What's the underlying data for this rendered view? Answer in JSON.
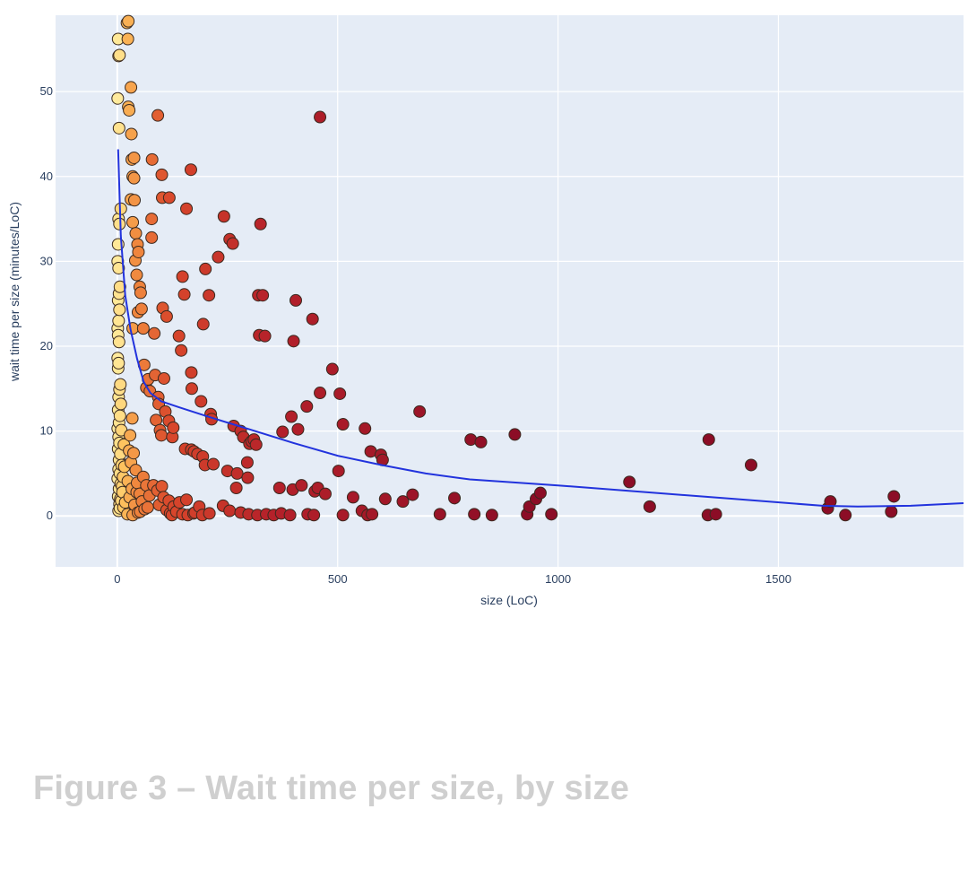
{
  "caption": "Figure 3 – Wait time per size, by size",
  "colors": {
    "plot_bg": "#e5ecf6",
    "grid": "#ffffff",
    "trend": "#2233dd",
    "marker_stroke": "#3a2a20",
    "colorscale": [
      "#ffeda0",
      "#fec45f",
      "#f0883e",
      "#d9472b",
      "#b5212a",
      "#8c0d26"
    ]
  },
  "chart_data": {
    "type": "scatter",
    "title": "",
    "xlabel": "size (LoC)",
    "ylabel": "wait time per size (minutes/LoC)",
    "xlim": [
      -140,
      1920
    ],
    "ylim": [
      -6,
      59
    ],
    "x_ticks": [
      0,
      500,
      1000,
      1500
    ],
    "x_tick_labels": [
      "0",
      "500",
      "1000",
      "1500"
    ],
    "y_ticks": [
      0,
      10,
      20,
      30,
      40,
      50
    ],
    "y_tick_labels": [
      "0",
      "10",
      "20",
      "30",
      "40",
      "50"
    ],
    "grid": true,
    "legend": "none",
    "marker_color_by": "size",
    "series": [
      {
        "points": [
          [
            2,
            56.2
          ],
          [
            3,
            54.2
          ],
          [
            5,
            54.3
          ],
          [
            1,
            49.2
          ],
          [
            4,
            45.7
          ],
          [
            8,
            36.2
          ],
          [
            3,
            35
          ],
          [
            5,
            34.4
          ],
          [
            2,
            32
          ],
          [
            1,
            30
          ],
          [
            3,
            29.2
          ],
          [
            6,
            27
          ],
          [
            4,
            26.2
          ],
          [
            2,
            25.4
          ],
          [
            5,
            24.3
          ],
          [
            3,
            23
          ],
          [
            1,
            22.1
          ],
          [
            2,
            21.3
          ],
          [
            4,
            20.5
          ],
          [
            1,
            18.6
          ],
          [
            3,
            18
          ],
          [
            2,
            17.4
          ],
          [
            7,
            15.5
          ],
          [
            5,
            14.9
          ],
          [
            3,
            14
          ],
          [
            8,
            13.2
          ],
          [
            2,
            12.5
          ],
          [
            6,
            11.8
          ],
          [
            4,
            11
          ],
          [
            1,
            10.3
          ],
          [
            9,
            10.1
          ],
          [
            3,
            9.3
          ],
          [
            5,
            8.6
          ],
          [
            2,
            7.9
          ],
          [
            7,
            7.3
          ],
          [
            4,
            6.6
          ],
          [
            10,
            6
          ],
          [
            3,
            5.5
          ],
          [
            6,
            5
          ],
          [
            1,
            4.4
          ],
          [
            8,
            3.8
          ],
          [
            4,
            3.2
          ],
          [
            12,
            2.8
          ],
          [
            2,
            2.3
          ],
          [
            9,
            1.8
          ],
          [
            5,
            1.4
          ],
          [
            14,
            1
          ],
          [
            3,
            0.6
          ],
          [
            11,
            3.5
          ],
          [
            7,
            2
          ],
          [
            16,
            5.8
          ],
          [
            13,
            4.6
          ],
          [
            18,
            1.6
          ],
          [
            6,
            0.9
          ],
          [
            15,
            8.4
          ],
          [
            22,
            58.1
          ],
          [
            25,
            58.3
          ],
          [
            24,
            56.2
          ],
          [
            31,
            50.5
          ],
          [
            25,
            48.2
          ],
          [
            27,
            47.8
          ],
          [
            32,
            45
          ],
          [
            38,
            42.2
          ],
          [
            33,
            42
          ],
          [
            35,
            40
          ],
          [
            38,
            39.8
          ],
          [
            31,
            37.3
          ],
          [
            39,
            37.2
          ],
          [
            35,
            34.6
          ],
          [
            42,
            33.3
          ],
          [
            46,
            32
          ],
          [
            41,
            30.1
          ],
          [
            48,
            31.1
          ],
          [
            44,
            28.4
          ],
          [
            51,
            27
          ],
          [
            53,
            26.3
          ],
          [
            47,
            24
          ],
          [
            55,
            24.4
          ],
          [
            59,
            22.1
          ],
          [
            35,
            22.1
          ],
          [
            61,
            17.8
          ],
          [
            70,
            16.1
          ],
          [
            66,
            15.1
          ],
          [
            74,
            14.7
          ],
          [
            34,
            11.5
          ],
          [
            29,
            9.5
          ],
          [
            27,
            7.7
          ],
          [
            37,
            7.4
          ],
          [
            31,
            6.3
          ],
          [
            42,
            5.4
          ],
          [
            24,
            4.1
          ],
          [
            45,
            3.9
          ],
          [
            33,
            3.2
          ],
          [
            51,
            2.6
          ],
          [
            28,
            2.2
          ],
          [
            56,
            1.7
          ],
          [
            39,
            1.3
          ],
          [
            62,
            0.8
          ],
          [
            47,
            0.4
          ],
          [
            23,
            0.2
          ],
          [
            35,
            0.1
          ],
          [
            59,
            4.6
          ],
          [
            66,
            3.6
          ],
          [
            73,
            2.4
          ],
          [
            44,
            2.8
          ],
          [
            52,
            0.5
          ],
          [
            69,
            1
          ],
          [
            78,
            35
          ],
          [
            78,
            32.8
          ],
          [
            84,
            21.5
          ],
          [
            86,
            16.6
          ],
          [
            93,
            14
          ],
          [
            97,
            10.1
          ],
          [
            88,
            11.3
          ],
          [
            100,
            9.5
          ],
          [
            82,
            3.6
          ],
          [
            91,
            3
          ],
          [
            105,
            2.2
          ],
          [
            95,
            1.3
          ],
          [
            112,
            0.7
          ],
          [
            120,
            0.3
          ],
          [
            101,
            3.5
          ],
          [
            117,
            1.8
          ],
          [
            128,
            1.1
          ],
          [
            134,
            0.5
          ],
          [
            148,
            0.2
          ],
          [
            160,
            0.1
          ],
          [
            176,
            0.4
          ],
          [
            193,
            0.1
          ],
          [
            209,
            0.3
          ],
          [
            124,
            0.1
          ],
          [
            141,
            1.6
          ],
          [
            157,
            1.9
          ],
          [
            173,
            0.3
          ],
          [
            186,
            1.1
          ],
          [
            92,
            47.2
          ],
          [
            79,
            42
          ],
          [
            101,
            40.2
          ],
          [
            102,
            37.5
          ],
          [
            118,
            37.5
          ],
          [
            103,
            24.5
          ],
          [
            112,
            23.5
          ],
          [
            106,
            16.2
          ],
          [
            94,
            13.2
          ],
          [
            109,
            12.3
          ],
          [
            117,
            11.2
          ],
          [
            127,
            10.4
          ],
          [
            125,
            9.3
          ],
          [
            140,
            21.2
          ],
          [
            145,
            19.5
          ],
          [
            148,
            28.2
          ],
          [
            152,
            26.1
          ],
          [
            157,
            36.2
          ],
          [
            167,
            40.8
          ],
          [
            168,
            16.9
          ],
          [
            169,
            15
          ],
          [
            174,
            7.6
          ],
          [
            182,
            7.3
          ],
          [
            194,
            7
          ],
          [
            168,
            7.8
          ],
          [
            154,
            7.9
          ],
          [
            190,
            13.5
          ],
          [
            195,
            22.6
          ],
          [
            200,
            29.1
          ],
          [
            208,
            26
          ],
          [
            212,
            12
          ],
          [
            214,
            11.4
          ],
          [
            199,
            6
          ],
          [
            218,
            6.1
          ],
          [
            229,
            30.5
          ],
          [
            242,
            35.3
          ],
          [
            250,
            5.3
          ],
          [
            255,
            32.6
          ],
          [
            262,
            32.1
          ],
          [
            264,
            10.6
          ],
          [
            270,
            3.3
          ],
          [
            272,
            5
          ],
          [
            280,
            10
          ],
          [
            286,
            9.3
          ],
          [
            295,
            6.3
          ],
          [
            296,
            4.5
          ],
          [
            300,
            8.5
          ],
          [
            305,
            8.8
          ],
          [
            310,
            9
          ],
          [
            315,
            8.4
          ],
          [
            240,
            1.2
          ],
          [
            255,
            0.6
          ],
          [
            280,
            0.4
          ],
          [
            298,
            0.2
          ],
          [
            318,
            0.1
          ],
          [
            338,
            0.2
          ],
          [
            355,
            0.1
          ],
          [
            372,
            0.3
          ],
          [
            392,
            0.1
          ],
          [
            432,
            0.2
          ],
          [
            446,
            0.1
          ],
          [
            512,
            0.1
          ],
          [
            568,
            0.1
          ],
          [
            578,
            0.2
          ],
          [
            368,
            3.3
          ],
          [
            398,
            3.1
          ],
          [
            418,
            3.6
          ],
          [
            395,
            11.7
          ],
          [
            410,
            10.2
          ],
          [
            375,
            9.9
          ],
          [
            320,
            26
          ],
          [
            330,
            26
          ],
          [
            322,
            21.3
          ],
          [
            335,
            21.2
          ],
          [
            325,
            34.4
          ],
          [
            405,
            25.4
          ],
          [
            400,
            20.6
          ],
          [
            443,
            23.2
          ],
          [
            460,
            47
          ],
          [
            460,
            14.5
          ],
          [
            430,
            12.9
          ],
          [
            448,
            2.9
          ],
          [
            455,
            3.3
          ],
          [
            472,
            2.6
          ],
          [
            488,
            17.3
          ],
          [
            505,
            14.4
          ],
          [
            502,
            5.3
          ],
          [
            512,
            10.8
          ],
          [
            535,
            2.2
          ],
          [
            555,
            0.6
          ],
          [
            562,
            10.3
          ],
          [
            575,
            7.6
          ],
          [
            598,
            7.2
          ],
          [
            602,
            6.6
          ],
          [
            608,
            2
          ],
          [
            648,
            1.7
          ],
          [
            670,
            2.5
          ],
          [
            686,
            12.3
          ],
          [
            732,
            0.2
          ],
          [
            765,
            2.1
          ],
          [
            802,
            9
          ],
          [
            810,
            0.2
          ],
          [
            825,
            8.7
          ],
          [
            850,
            0.1
          ],
          [
            902,
            9.6
          ],
          [
            930,
            0.2
          ],
          [
            935,
            1.1
          ],
          [
            950,
            2
          ],
          [
            960,
            2.7
          ],
          [
            985,
            0.2
          ],
          [
            1162,
            4
          ],
          [
            1208,
            1.1
          ],
          [
            1340,
            0.1
          ],
          [
            1342,
            9
          ],
          [
            1358,
            0.2
          ],
          [
            1438,
            6
          ],
          [
            1612,
            0.9
          ],
          [
            1618,
            1.7
          ],
          [
            1652,
            0.1
          ],
          [
            1756,
            0.5
          ],
          [
            1762,
            2.3
          ]
        ]
      },
      {
        "type": "line",
        "x": [
          2,
          8,
          18,
          30,
          45,
          60,
          75,
          100,
          140,
          200,
          300,
          400,
          500,
          600,
          700,
          800,
          1000,
          1200,
          1400,
          1600,
          1680,
          1800,
          1920
        ],
        "y": [
          43.2,
          33,
          26,
          22,
          18.5,
          15.8,
          14.5,
          13.5,
          12.8,
          11.8,
          10.2,
          8.6,
          7.1,
          6,
          5,
          4.3,
          3.6,
          2.8,
          2,
          1.2,
          1.1,
          1.2,
          1.5
        ]
      }
    ]
  }
}
